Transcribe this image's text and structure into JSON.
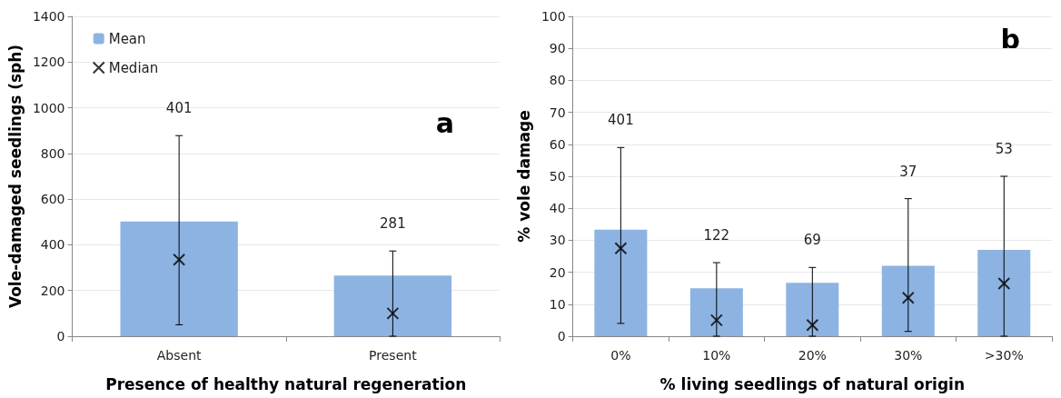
{
  "chart_data": [
    {
      "type": "bar",
      "xlabel": "Presence of healthy natural regeneration",
      "ylabel": "Vole-damaged seedlings (sph)",
      "categories": [
        "Absent",
        "Present"
      ],
      "ylim": [
        0,
        1400
      ],
      "yticks": [
        0,
        200,
        400,
        600,
        800,
        1000,
        1200,
        1400
      ],
      "grid": "y",
      "legend": "top left",
      "series": [
        {
          "name": "Mean",
          "color": "#8db3e2",
          "values": [
            502,
            265
          ],
          "errors": [
            [
              50,
              878
            ],
            [
              0,
              373
            ]
          ]
        },
        {
          "name": "Median",
          "type": "scatter",
          "marker": "cross",
          "color": "#000000",
          "x": [
            "Absent",
            "Present"
          ],
          "values": [
            335,
            100
          ]
        }
      ],
      "title": "a",
      "annotations": [
        "401",
        "281"
      ]
    },
    {
      "type": "bar",
      "xlabel": "% living seedlings of natural origin",
      "ylabel": "% vole damage",
      "categories": [
        "0%",
        "10%",
        "20%",
        "30%",
        ">30%"
      ],
      "ylim": [
        0,
        100
      ],
      "yticks": [
        0,
        10,
        20,
        30,
        40,
        50,
        60,
        70,
        80,
        90,
        100
      ],
      "grid": "y",
      "legend": false,
      "series": [
        {
          "color": "#8db3e2",
          "values": [
            33.3,
            15,
            16.7,
            22,
            27
          ],
          "errors": [
            [
              4,
              59
            ],
            [
              0,
              23
            ],
            [
              0,
              21.5
            ],
            [
              1.5,
              43
            ],
            [
              0,
              50
            ]
          ]
        },
        {
          "type": "scatter",
          "marker": "cross",
          "color": "#000000",
          "x": [
            "0%",
            "10%",
            "20%",
            "30%",
            ">30%"
          ],
          "values": [
            27.5,
            5,
            3.5,
            12,
            16.5
          ]
        }
      ],
      "title": "b",
      "annotations": [
        "401",
        "122",
        "69",
        "37",
        "53"
      ]
    }
  ]
}
